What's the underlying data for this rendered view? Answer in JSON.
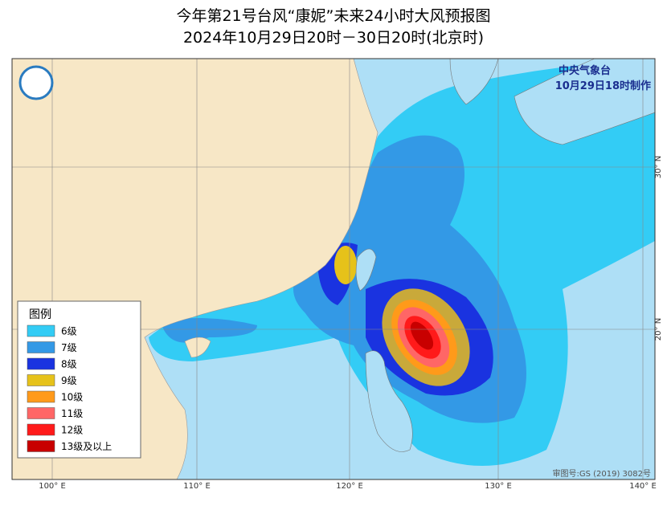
{
  "header": {
    "title": "今年第21号台风“康妮”未来24小时大风预报图",
    "subtitle": "2024年10月29日20时－30日20时(北京时)"
  },
  "issuer": {
    "agency": "中央气象台",
    "issued": "10月29日18时制作"
  },
  "legend": {
    "title": "图例",
    "items": [
      {
        "label": "6级",
        "color": "#33ccf5"
      },
      {
        "label": "7级",
        "color": "#3399e6"
      },
      {
        "label": "8级",
        "color": "#1a33e0"
      },
      {
        "label": "9级",
        "color": "#e6c21a"
      },
      {
        "label": "10级",
        "color": "#ff9a1a"
      },
      {
        "label": "11级",
        "color": "#ff6666"
      },
      {
        "label": "12级",
        "color": "#ff1a1a"
      },
      {
        "label": "13级及以上",
        "color": "#c80000"
      }
    ]
  },
  "axes": {
    "longitudes": [
      "100° E",
      "110° E",
      "120° E",
      "130° E",
      "140° E"
    ],
    "latitudes": [
      "30° N",
      "20° N"
    ]
  },
  "approval": "审图号:GS (2019) 3082号"
}
